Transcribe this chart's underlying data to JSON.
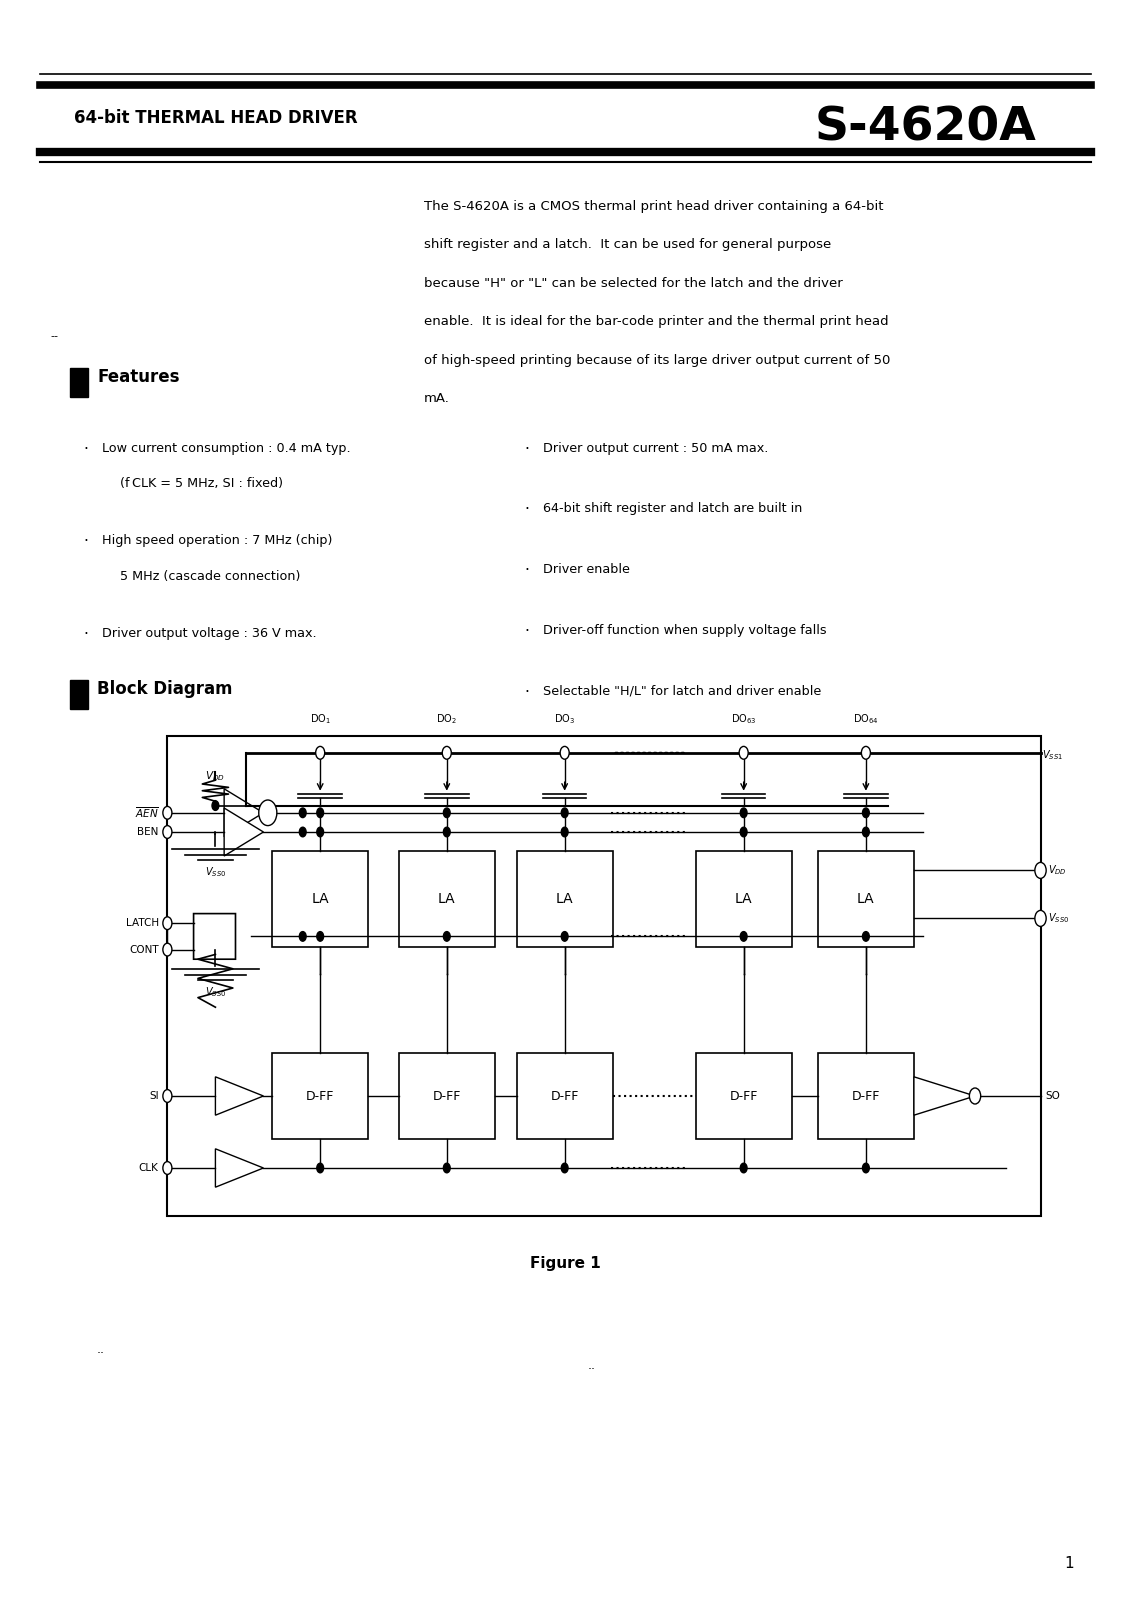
{
  "bg_color": "#ffffff",
  "page_width": 11.31,
  "page_height": 16.0,
  "header_subtitle": "64-bit THERMAL HEAD DRIVER",
  "header_title": "S-4620A",
  "description": "The S-4620A is a CMOS thermal print head driver containing a 64-bit\nshift register and a latch.  It can be used for general purpose\nbecause \"H\" or \"L\" can be selected for the latch and the driver\nenable.  It is ideal for the bar-code printer and the thermal print head\nof high-speed printing because of its large driver output current of 50\nmA.",
  "features_header": "Features",
  "feat_left": [
    [
      "Low current consumption : 0.4 mA typ.",
      "(f CLK = 5 MHz, SI : fixed)"
    ],
    [
      "High speed operation : 7 MHz (chip)",
      "5 MHz (cascade connection)"
    ],
    [
      "Driver output voltage : 36 V max.",
      null
    ]
  ],
  "feat_right": [
    "Driver output current : 50 mA max.",
    "64-bit shift register and latch are built in",
    "Driver enable",
    "Driver-off function when supply voltage falls",
    "Selectable \"H/L\" for latch and driver enable"
  ],
  "block_header": "Block Diagram",
  "figure_label": "Figure 1",
  "page_number": "1"
}
